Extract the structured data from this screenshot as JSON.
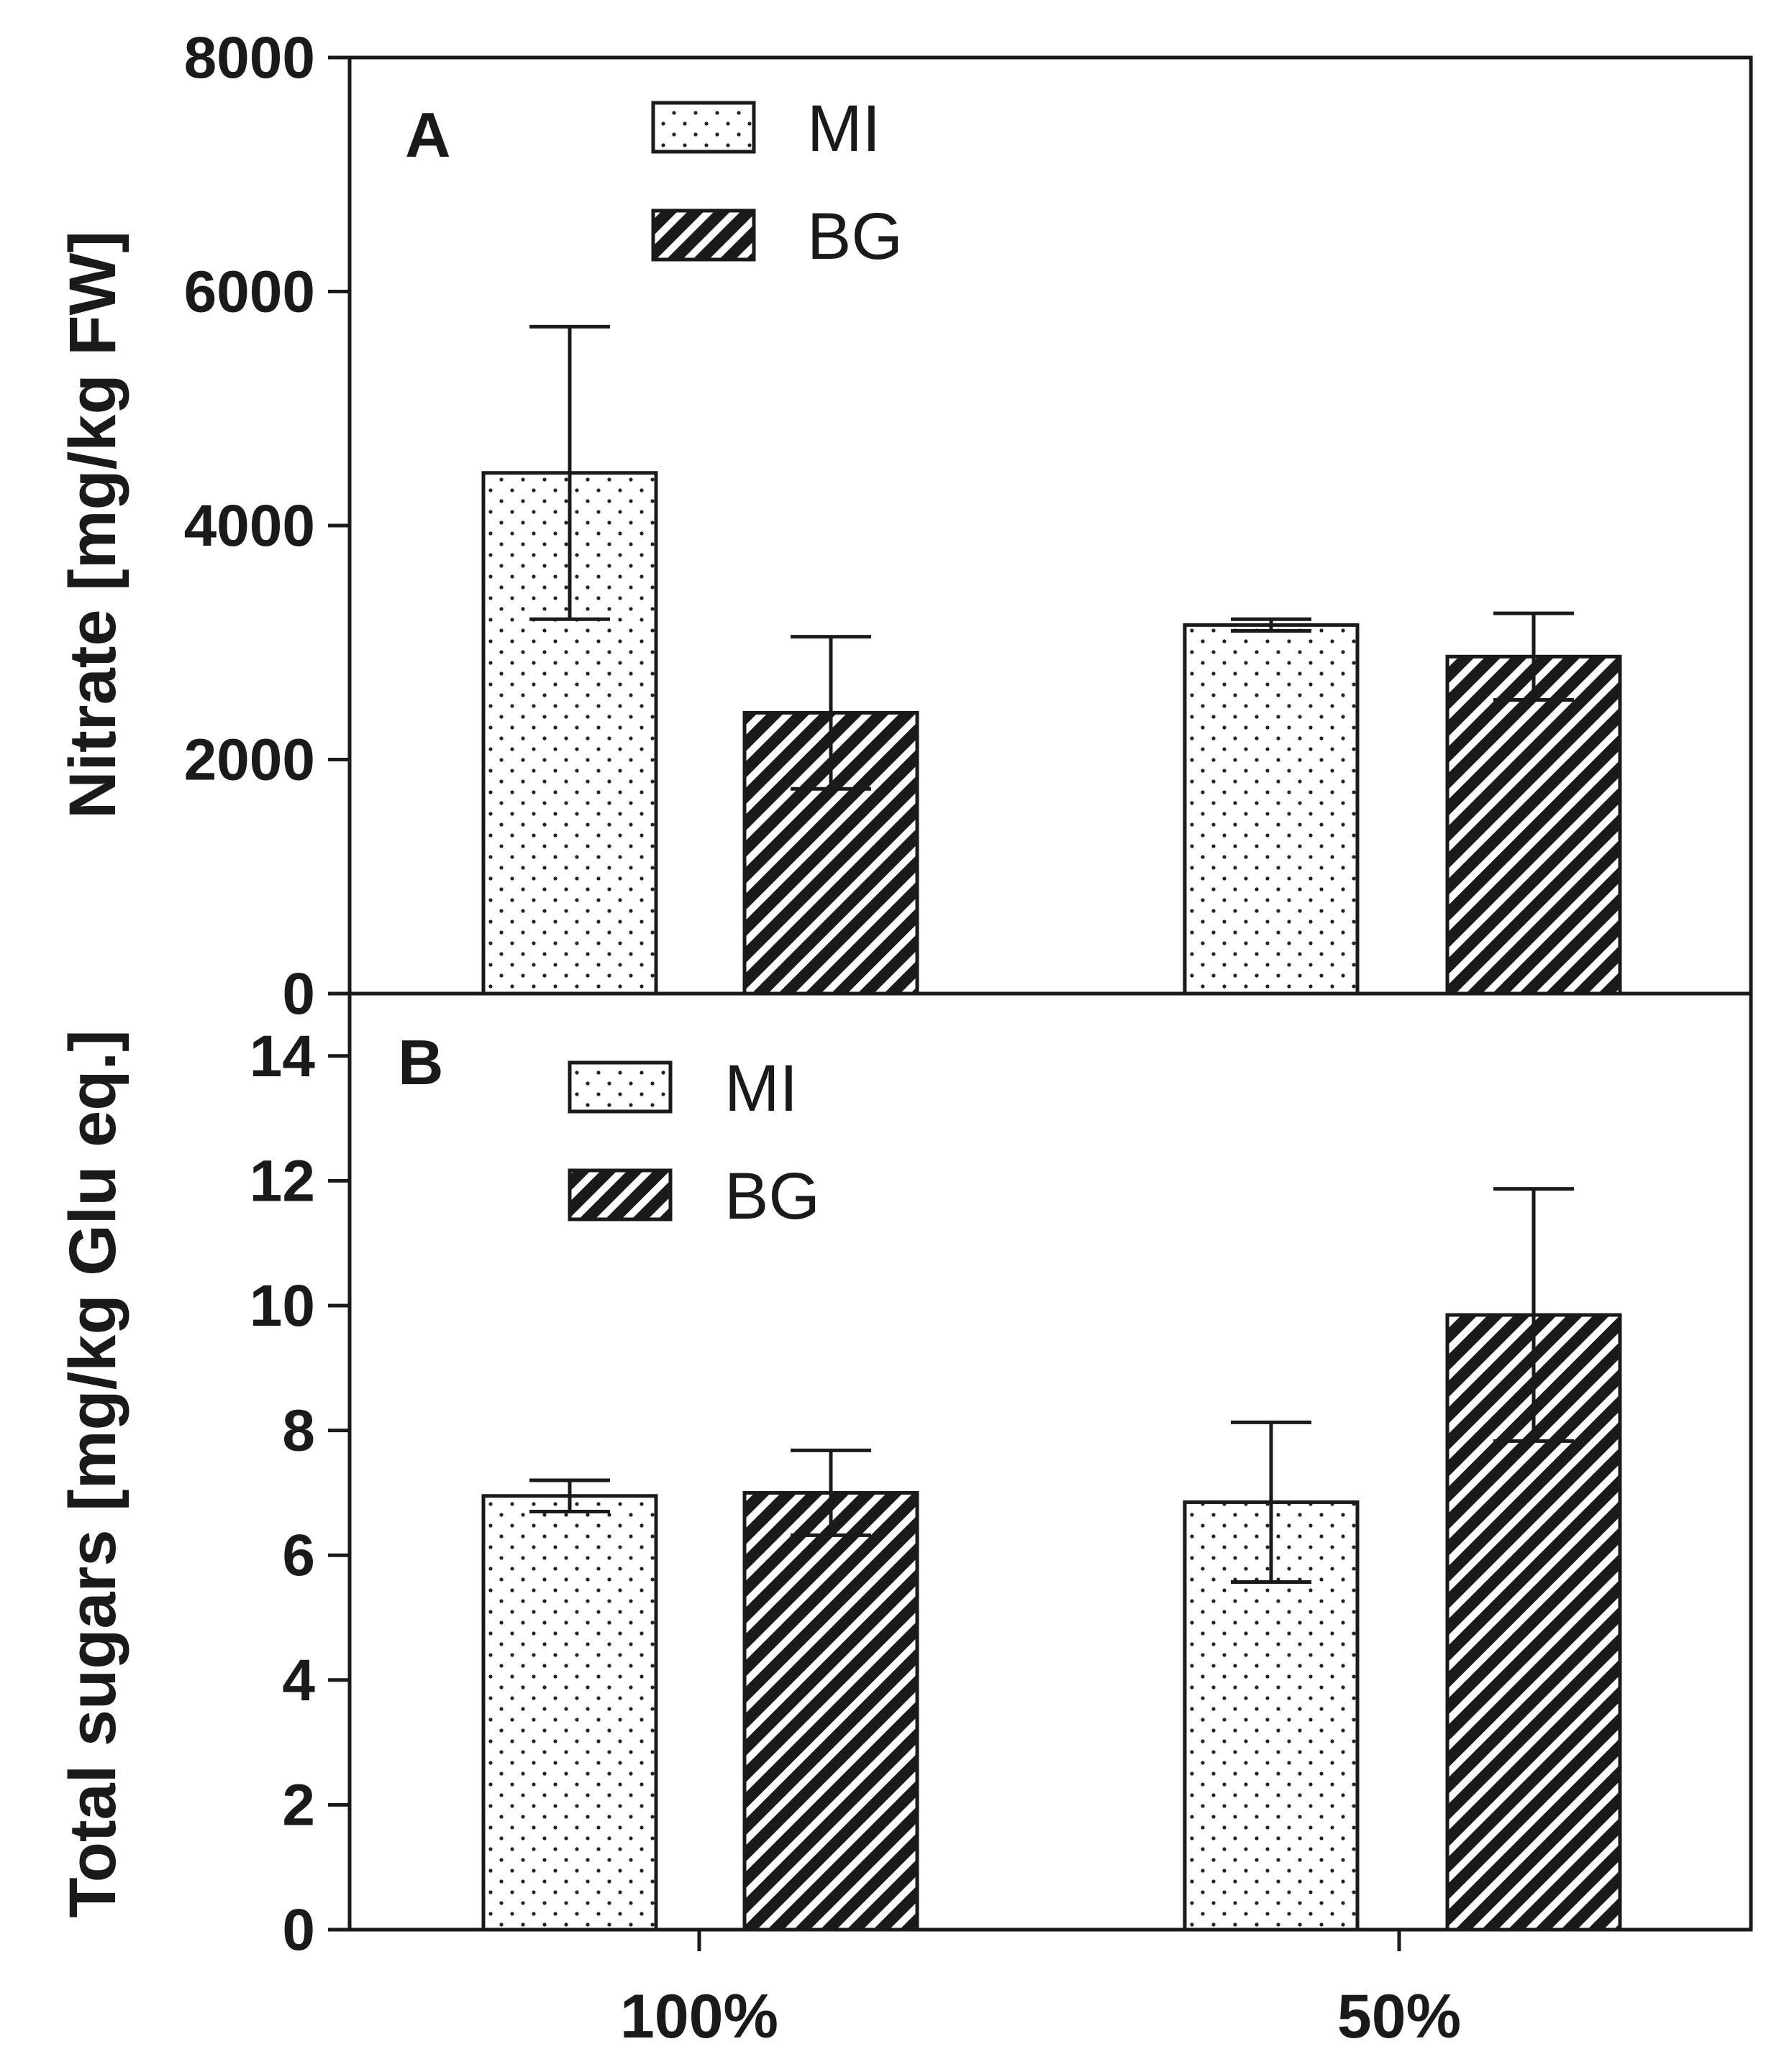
{
  "chart_data": [
    {
      "panel": "A",
      "type": "bar",
      "categories": [
        "100%",
        "50%"
      ],
      "series": [
        {
          "name": "MI",
          "pattern": "dots",
          "values": [
            4450,
            3150
          ],
          "errors": [
            1250,
            50
          ]
        },
        {
          "name": "BG",
          "pattern": "hatch",
          "values": [
            2400,
            2880
          ],
          "errors": [
            650,
            370
          ]
        }
      ],
      "ylabel": "Nitrate [mg/kg FW]",
      "xlabel": "",
      "ylim": [
        0,
        8000
      ],
      "yticks": [
        0,
        2000,
        4000,
        6000,
        8000
      ],
      "ytick_labels": [
        "0",
        "2000",
        "4000",
        "6000",
        "8000"
      ],
      "legend": "top-left"
    },
    {
      "panel": "B",
      "type": "bar",
      "categories": [
        "100%",
        "50%"
      ],
      "series": [
        {
          "name": "MI",
          "pattern": "dots",
          "values": [
            6.95,
            6.85
          ],
          "errors": [
            0.25,
            1.28
          ]
        },
        {
          "name": "BG",
          "pattern": "hatch",
          "values": [
            7.0,
            9.85
          ],
          "errors": [
            0.68,
            2.02
          ]
        }
      ],
      "ylabel": "Total sugars [mg/kg Glu eq.]",
      "xlabel": "",
      "ylim": [
        0,
        15
      ],
      "yticks": [
        0,
        2,
        4,
        6,
        8,
        10,
        12,
        14
      ],
      "ytick_labels": [
        "0",
        "2",
        "4",
        "6",
        "8",
        "10",
        "12",
        "14"
      ],
      "legend": "top-left"
    }
  ],
  "colors": {
    "axis": "#1a1a1a",
    "bar_fill_light": "#ffffff",
    "bar_fill_dark": "#1a1a1a"
  }
}
